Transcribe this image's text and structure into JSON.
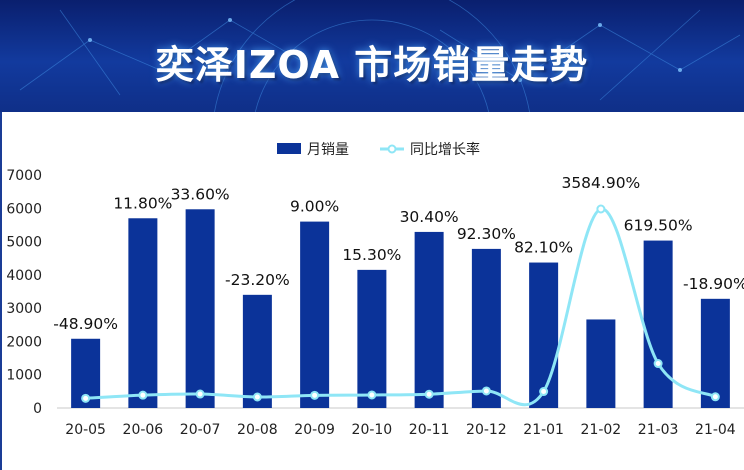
{
  "header": {
    "title": "奕泽IZOA 市场销量走势"
  },
  "colors": {
    "bar": "#0b3399",
    "line": "#8fe6f6",
    "banner": "#0f2f88"
  },
  "chart_data": {
    "type": "bar",
    "categories": [
      "20-05",
      "20-06",
      "20-07",
      "20-08",
      "20-09",
      "20-10",
      "20-11",
      "20-12",
      "21-01",
      "21-02",
      "21-03",
      "21-04"
    ],
    "series": [
      {
        "name": "月销量",
        "type": "bar",
        "values": [
          2080,
          5700,
          5970,
          3400,
          5600,
          4150,
          5290,
          4780,
          4370,
          2660,
          5030,
          3280
        ]
      },
      {
        "name": "同比增长率",
        "type": "line",
        "axis": "secondary",
        "values": [
          -48.9,
          11.8,
          33.6,
          -23.2,
          9.0,
          15.3,
          30.4,
          92.3,
          82.1,
          3584.9,
          619.5,
          -18.9
        ]
      }
    ],
    "data_labels": [
      "-48.90%",
      "11.80%",
      "33.60%",
      "-23.20%",
      "9.00%",
      "15.30%",
      "30.40%",
      "92.30%",
      "82.10%",
      "3584.90%",
      "619.50%",
      "-18.90%"
    ],
    "y_ticks": [
      "0",
      "1000",
      "2000",
      "3000",
      "4000",
      "5000",
      "6000",
      "7000"
    ],
    "ylim": [
      0,
      7000
    ],
    "legend_position": "top-center",
    "grid": false
  }
}
